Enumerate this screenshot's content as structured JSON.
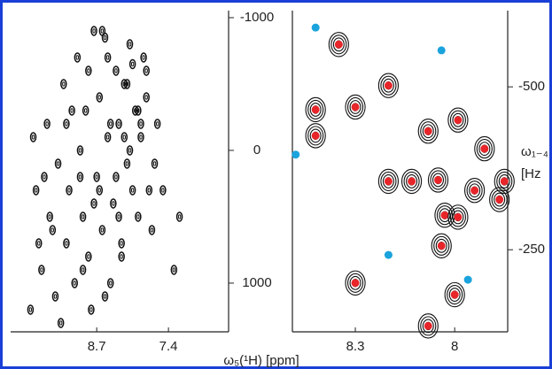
{
  "chart_data": [
    {
      "type": "contour",
      "xlabel": "ω₅(¹H) [ppm]",
      "xlim": [
        10.26,
        6.31
      ],
      "xticks": [
        8.7,
        7.4
      ],
      "ylim": [
        -1053,
        1367
      ],
      "yticks": [
        -1000,
        0,
        1000
      ],
      "series": [
        {
          "color": "#111111",
          "x": [
            9.9,
            9.8,
            9.7,
            9.6,
            9.5,
            9.45,
            9.4,
            9.3,
            9.25,
            9.2,
            9.1,
            9.05,
            9.0,
            8.95,
            8.9,
            8.85,
            8.8,
            8.75,
            8.7,
            8.65,
            8.6,
            8.55,
            8.5,
            8.45,
            8.4,
            8.35,
            8.3,
            8.25,
            8.2,
            8.15,
            8.1,
            8.05,
            8.0,
            7.95,
            7.9,
            7.85,
            7.8,
            7.7,
            7.6,
            7.5,
            7.3,
            9.85,
            9.65,
            9.35,
            9.15,
            8.95,
            8.75,
            8.55,
            8.45,
            8.35,
            8.25,
            8.15,
            8.05,
            7.95,
            7.75,
            9.55,
            9.25,
            8.85,
            8.65,
            8.5,
            8.3,
            8.1,
            7.9,
            7.65,
            9.75,
            9.0,
            8.6,
            8.2,
            7.8,
            7.2
          ],
          "values": [
            1200,
            300,
            900,
            -200,
            600,
            1100,
            100,
            -500,
            700,
            300,
            1000,
            -700,
            0,
            500,
            -300,
            800,
            1200,
            -900,
            200,
            -400,
            600,
            -850,
            -100,
            1000,
            400,
            -600,
            -200,
            700,
            -500,
            100,
            -800,
            300,
            -300,
            500,
            -100,
            -700,
            -400,
            600,
            -200,
            300,
            900,
            -100,
            200,
            1300,
            -300,
            900,
            400,
            1100,
            -200,
            200,
            800,
            -500,
            -650,
            -300,
            300,
            500,
            -200,
            -600,
            300,
            -700,
            500,
            0,
            -200,
            100,
            700,
            200,
            -900,
            -100,
            -600,
            500
          ]
        }
      ]
    },
    {
      "type": "contour",
      "ylabel_lines": [
        "ω₁₋₄",
        "[Hz"
      ],
      "xlim": [
        8.49,
        7.84
      ],
      "xticks": [
        8.3,
        8.0
      ],
      "ylim": [
        -617,
        -124
      ],
      "yticks": [
        -500,
        -250
      ],
      "series": [
        {
          "color": "#e8262a",
          "x": [
            8.35,
            8.2,
            8.42,
            8.3,
            8.42,
            8.08,
            7.99,
            7.91,
            8.2,
            8.13,
            8.05,
            7.85,
            7.94,
            8.03,
            7.99,
            7.865,
            8.04,
            8.3,
            8.0,
            8.08
          ],
          "values": [
            -565,
            -502,
            -465,
            -469,
            -425,
            -432,
            -449,
            -405,
            -355,
            -355,
            -357,
            -355,
            -341,
            -303,
            -300,
            -327,
            -256,
            -199,
            -181,
            -133
          ]
        },
        {
          "color": "#1ba3dd",
          "x": [
            8.42,
            8.04,
            8.48,
            8.2,
            7.96
          ],
          "values": [
            -591,
            -556,
            -396,
            -242,
            -204
          ]
        }
      ]
    }
  ]
}
